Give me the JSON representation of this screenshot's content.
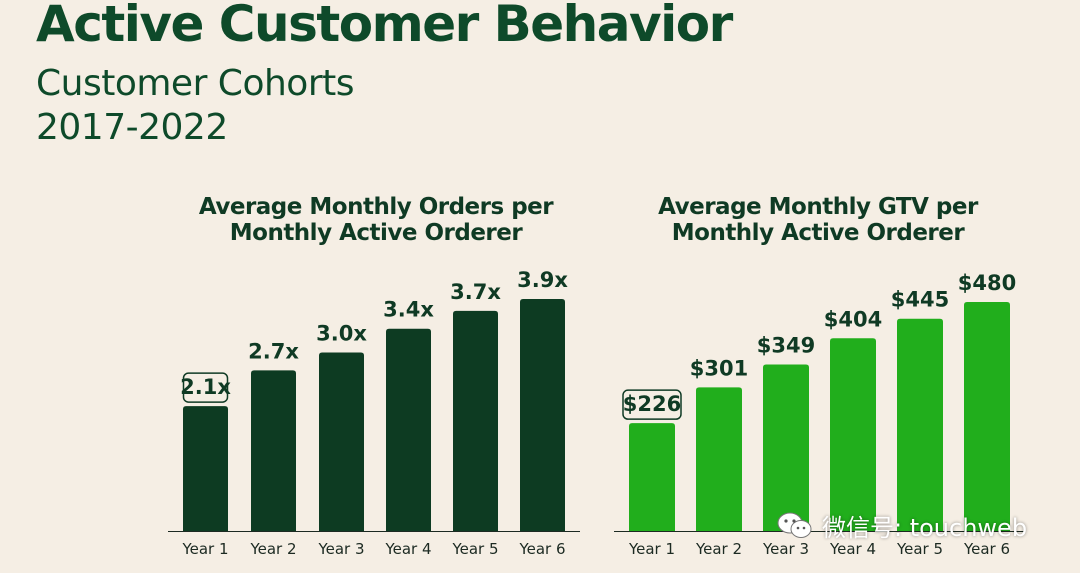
{
  "header": {
    "title": "Active Customer Behavior",
    "subtitle_line1": "Customer Cohorts",
    "subtitle_line2": "2017-2022"
  },
  "colors": {
    "dark_green": "#0d3b22",
    "bright_green": "#21ae1c",
    "text": "#0f3a24",
    "background": "#f5eee4"
  },
  "chart_data": [
    {
      "type": "bar",
      "title": "Average Monthly Orders per Monthly Active Orderer",
      "title_lines": [
        "Average Monthly Orders per",
        "Monthly Active Orderer"
      ],
      "categories": [
        "Year 1",
        "Year 2",
        "Year 3",
        "Year 4",
        "Year 5",
        "Year 6"
      ],
      "values": [
        2.1,
        2.7,
        3.0,
        3.4,
        3.7,
        3.9
      ],
      "data_labels": [
        "2.1x",
        "2.7x",
        "3.0x",
        "3.4x",
        "3.7x",
        "3.9x"
      ],
      "highlighted_label_index": 0,
      "xlabel": "",
      "ylabel": "",
      "ylim": [
        0,
        3.9
      ]
    },
    {
      "type": "bar",
      "title": "Average Monthly GTV per Monthly Active Orderer",
      "title_lines": [
        "Average Monthly GTV per",
        "Monthly Active Orderer"
      ],
      "categories": [
        "Year 1",
        "Year 2",
        "Year 3",
        "Year 4",
        "Year 5",
        "Year 6"
      ],
      "values": [
        226,
        301,
        349,
        404,
        445,
        480
      ],
      "data_labels": [
        "$226",
        "$301",
        "$349",
        "$404",
        "$445",
        "$480"
      ],
      "highlighted_label_index": 0,
      "xlabel": "",
      "ylabel": "",
      "ylim": [
        0,
        480
      ]
    }
  ],
  "watermark": {
    "text": "微信号: touchweb",
    "icon": "wechat-icon"
  }
}
